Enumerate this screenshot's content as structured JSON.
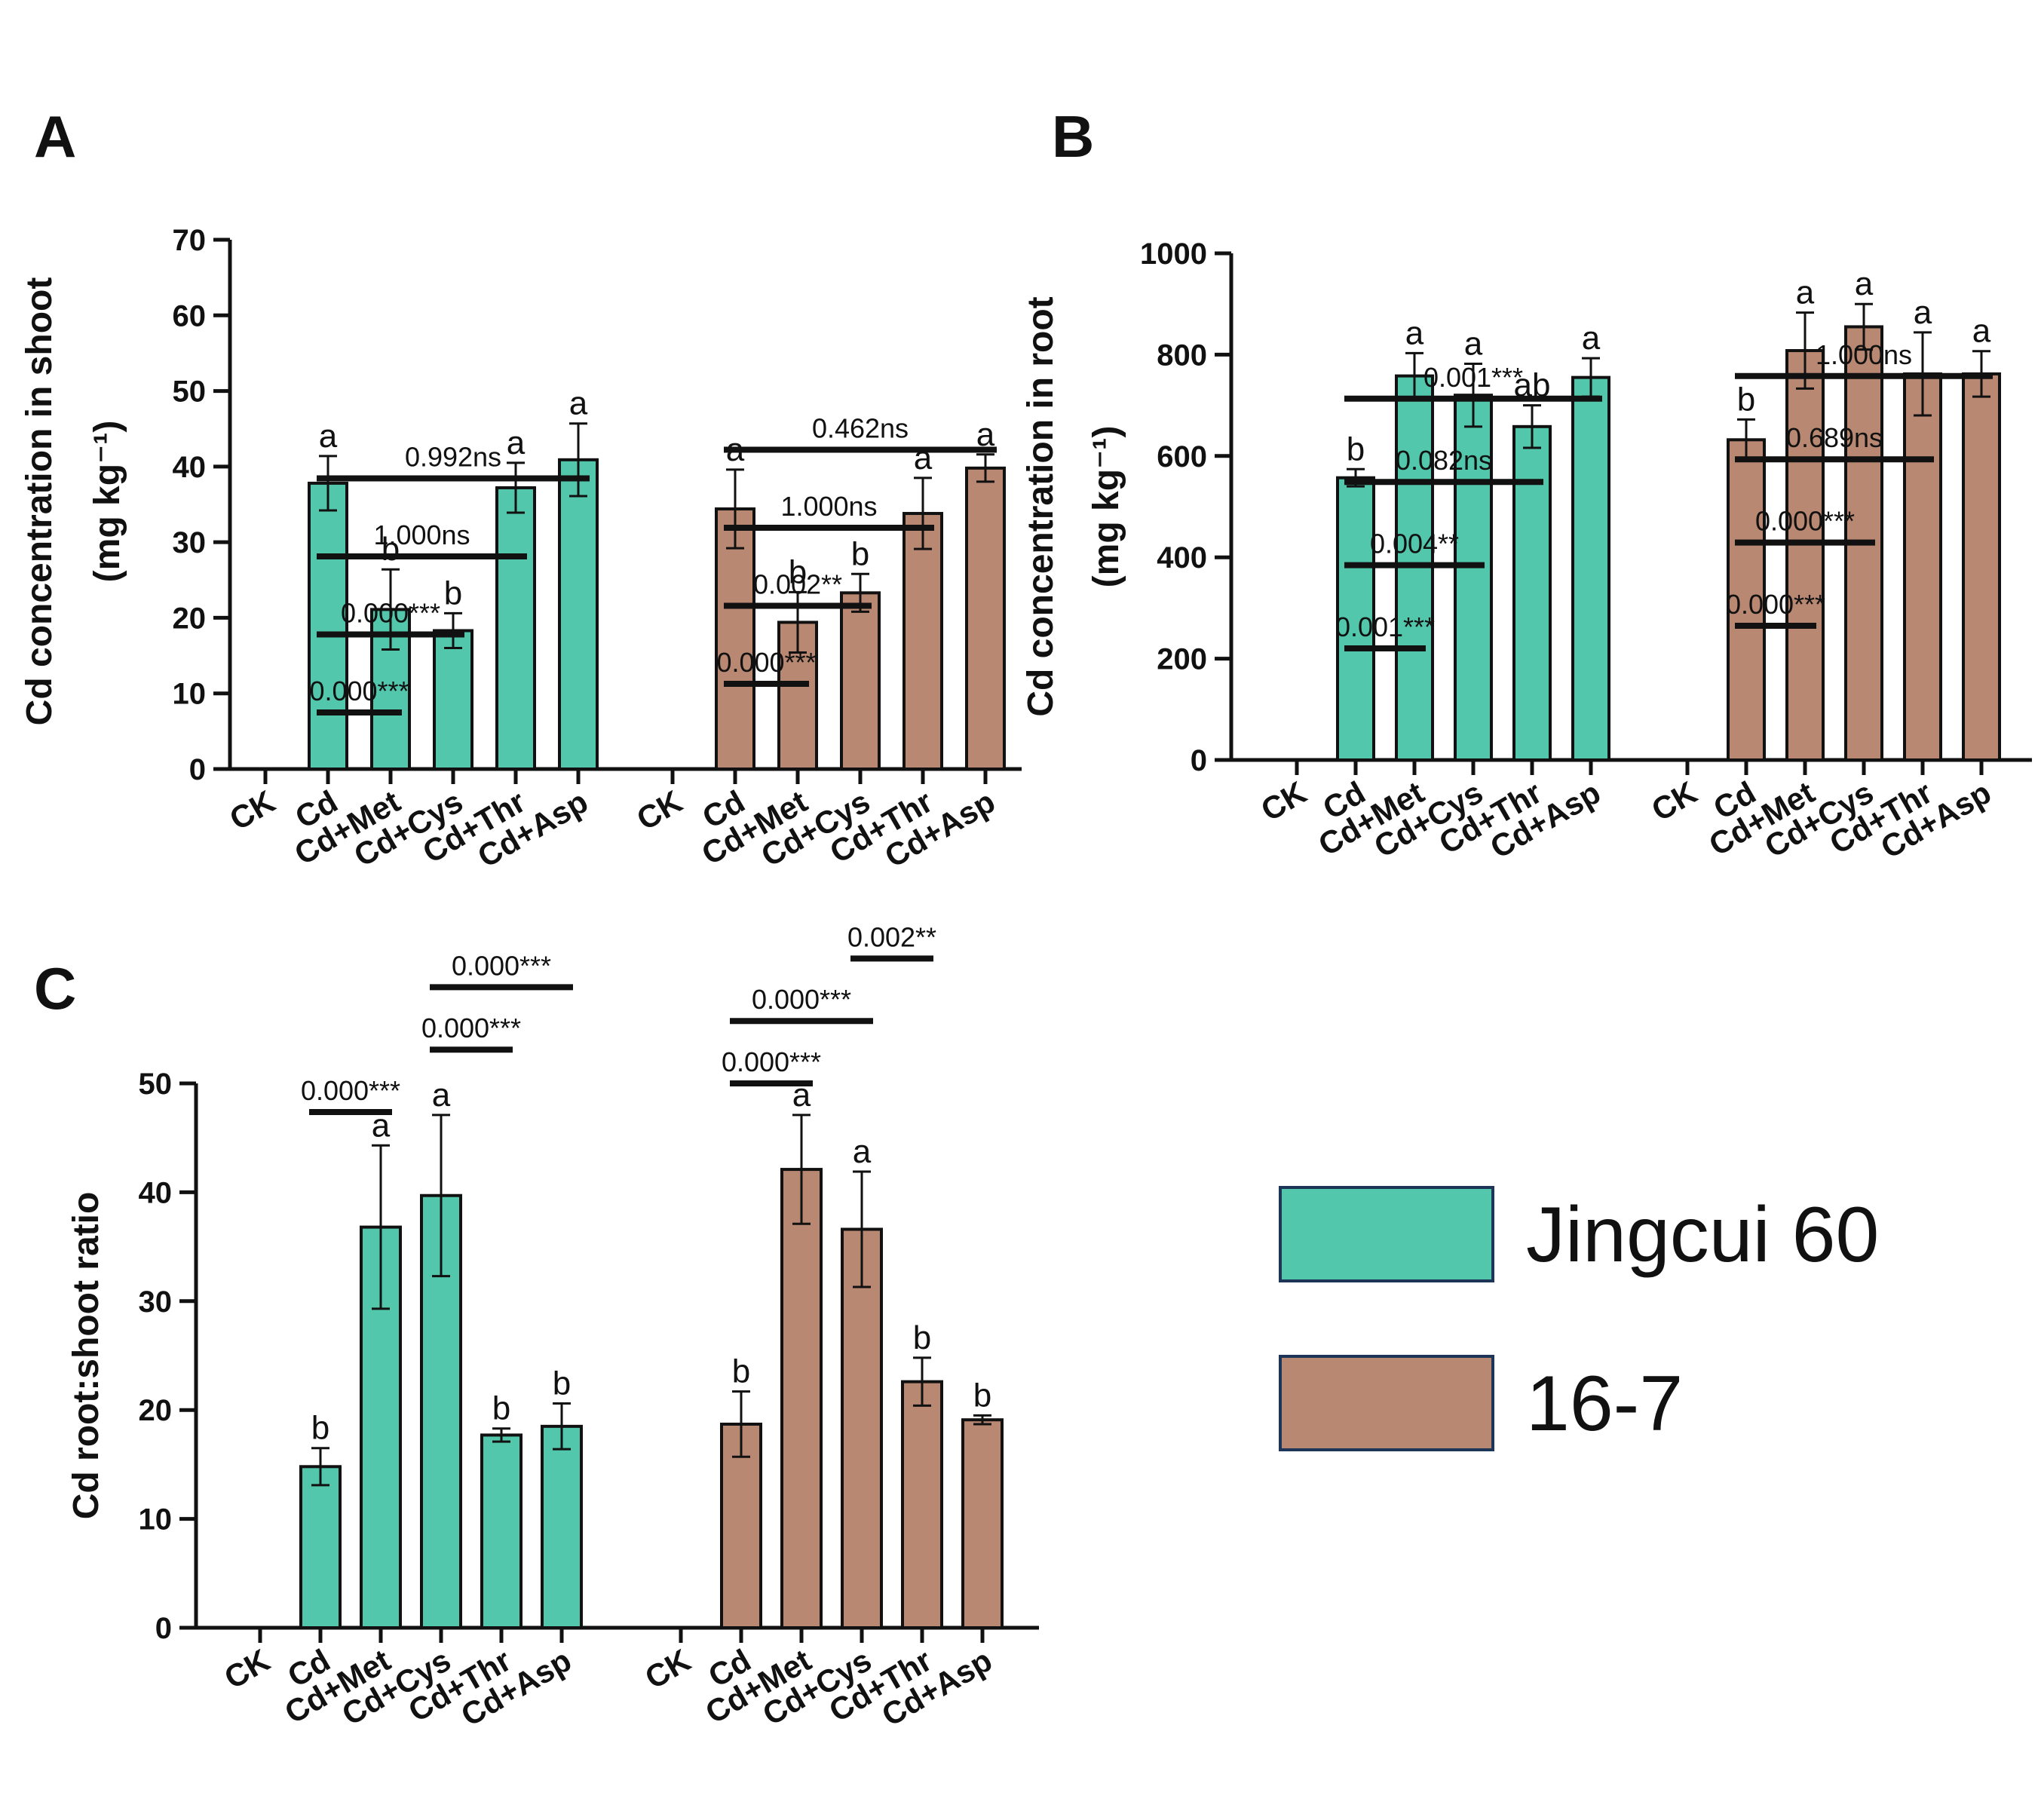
{
  "colors": {
    "jingcui60": "#52C7AB",
    "line167": "#B88872",
    "axis": "#111111",
    "legend_border": "#1D3557"
  },
  "legend": {
    "items": [
      {
        "label": "Jingcui 60",
        "color": "#52C7AB"
      },
      {
        "label": "16-7",
        "color": "#B88872"
      }
    ]
  },
  "chart_data": [
    {
      "panel": "A",
      "type": "bar",
      "ylabel_line1": "Cd concentration in shoot",
      "ylabel_line2": "(mg kg⁻¹)",
      "ylim": [
        0,
        70
      ],
      "yticks": [
        0,
        10,
        20,
        30,
        40,
        50,
        60,
        70
      ],
      "categories": [
        "CK",
        "Cd",
        "Cd+Met",
        "Cd+Cys",
        "Cd+Thr",
        "Cd+Asp"
      ],
      "series": [
        {
          "name": "Jingcui 60",
          "values": [
            0,
            37.8,
            21.1,
            18.3,
            37.2,
            40.9
          ],
          "errors": [
            0,
            3.6,
            5.3,
            2.3,
            3.3,
            4.8
          ],
          "letters": [
            "",
            "a",
            "b",
            "b",
            "a",
            "a"
          ]
        },
        {
          "name": "16-7",
          "values": [
            0,
            34.4,
            19.4,
            23.3,
            33.8,
            39.8
          ],
          "errors": [
            0,
            5.2,
            4.0,
            2.5,
            4.7,
            1.8
          ],
          "letters": [
            "",
            "a",
            "b",
            "b",
            "a",
            "a"
          ]
        }
      ],
      "comparisons": [
        {
          "series": 0,
          "from": 1,
          "to": 2,
          "label": "0.000***"
        },
        {
          "series": 0,
          "from": 1,
          "to": 3,
          "label": "0.000***"
        },
        {
          "series": 0,
          "from": 1,
          "to": 4,
          "label": "1.000ns"
        },
        {
          "series": 0,
          "from": 1,
          "to": 5,
          "label": "0.992ns"
        },
        {
          "series": 1,
          "from": 1,
          "to": 2,
          "label": "0.000***"
        },
        {
          "series": 1,
          "from": 1,
          "to": 3,
          "label": "0.002**"
        },
        {
          "series": 1,
          "from": 1,
          "to": 4,
          "label": "1.000ns"
        },
        {
          "series": 1,
          "from": 1,
          "to": 5,
          "label": "0.462ns"
        }
      ]
    },
    {
      "panel": "B",
      "type": "bar",
      "ylabel_line1": "Cd concentration in root",
      "ylabel_line2": "(mg kg⁻¹)",
      "ylim": [
        0,
        1000
      ],
      "yticks": [
        0,
        200,
        400,
        600,
        800,
        1000
      ],
      "categories": [
        "CK",
        "Cd",
        "Cd+Met",
        "Cd+Cys",
        "Cd+Thr",
        "Cd+Asp"
      ],
      "series": [
        {
          "name": "Jingcui 60",
          "values": [
            0,
            557,
            758,
            720,
            658,
            755
          ],
          "errors": [
            0,
            17,
            45,
            62,
            42,
            38
          ],
          "letters": [
            "",
            "b",
            "a",
            "a",
            "ab",
            "a"
          ]
        },
        {
          "name": "16-7",
          "values": [
            0,
            632,
            808,
            855,
            762,
            762
          ],
          "errors": [
            0,
            40,
            75,
            45,
            82,
            45
          ],
          "letters": [
            "",
            "b",
            "a",
            "a",
            "a",
            "a"
          ]
        }
      ],
      "comparisons": [
        {
          "series": 0,
          "from": 1,
          "to": 2,
          "label": "0.001***"
        },
        {
          "series": 0,
          "from": 1,
          "to": 3,
          "label": "0.004**"
        },
        {
          "series": 0,
          "from": 1,
          "to": 4,
          "label": "0.082ns"
        },
        {
          "series": 0,
          "from": 1,
          "to": 5,
          "label": "0.001***"
        },
        {
          "series": 1,
          "from": 1,
          "to": 2,
          "label": "0.000***"
        },
        {
          "series": 1,
          "from": 1,
          "to": 3,
          "label": "0.000***"
        },
        {
          "series": 1,
          "from": 1,
          "to": 4,
          "label": "0.689ns"
        },
        {
          "series": 1,
          "from": 1,
          "to": 5,
          "label": "1.000ns"
        }
      ]
    },
    {
      "panel": "C",
      "type": "bar",
      "ylabel_line1": "Cd root:shoot ratio",
      "ylabel_line2": "",
      "ylim": [
        0,
        50
      ],
      "yticks": [
        0,
        10,
        20,
        30,
        40,
        50
      ],
      "categories": [
        "CK",
        "Cd",
        "Cd+Met",
        "Cd+Cys",
        "Cd+Thr",
        "Cd+Asp"
      ],
      "series": [
        {
          "name": "Jingcui 60",
          "values": [
            0,
            14.8,
            36.8,
            39.7,
            17.7,
            18.5
          ],
          "errors": [
            0,
            1.7,
            7.5,
            7.4,
            0.6,
            2.1
          ],
          "letters": [
            "",
            "b",
            "a",
            "a",
            "b",
            "b"
          ]
        },
        {
          "name": "16-7",
          "values": [
            0,
            18.7,
            42.1,
            36.6,
            22.6,
            19.1
          ],
          "errors": [
            0,
            3.0,
            5.0,
            5.3,
            2.2,
            0.4
          ],
          "letters": [
            "",
            "b",
            "a",
            "a",
            "b",
            "b"
          ]
        }
      ],
      "comparisons": [
        {
          "series": 0,
          "from": 1,
          "to": 2,
          "label": "0.000***"
        },
        {
          "series": 0,
          "from": 3,
          "to": 4,
          "label": "0.000***"
        },
        {
          "series": 0,
          "from": 3,
          "to": 5,
          "label": "0.000***"
        },
        {
          "series": 1,
          "from": 1,
          "to": 2,
          "label": "0.000***"
        },
        {
          "series": 1,
          "from": 1,
          "to": 3,
          "label": "0.000***"
        },
        {
          "series": 1,
          "from": 3,
          "to": 4,
          "label": "0.002**"
        }
      ]
    }
  ]
}
